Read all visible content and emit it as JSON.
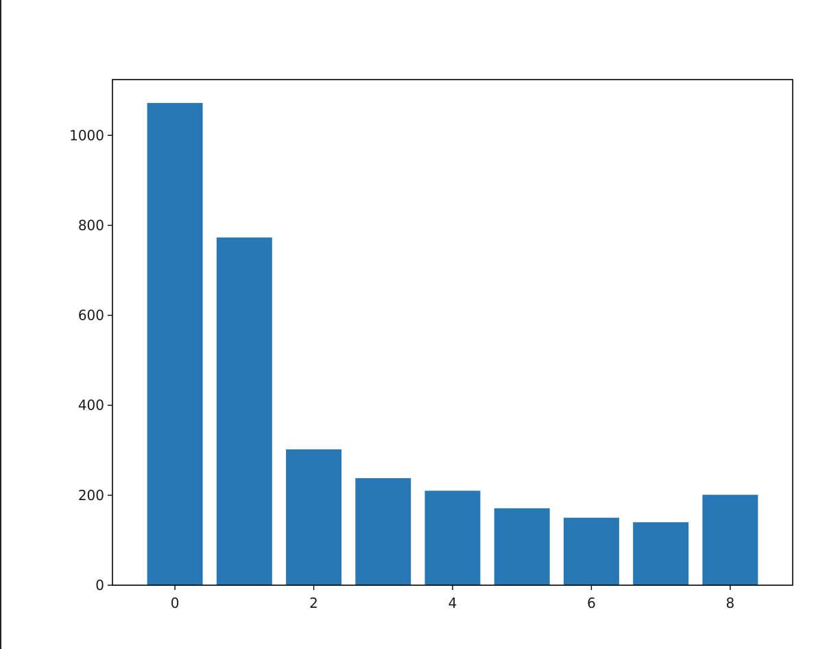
{
  "chart_data": {
    "type": "bar",
    "categories": [
      0,
      1,
      2,
      3,
      4,
      5,
      6,
      7,
      8
    ],
    "values": [
      1072,
      773,
      302,
      238,
      210,
      171,
      150,
      140,
      201
    ],
    "title": "",
    "xlabel": "",
    "ylabel": "",
    "xlim": [
      -0.9,
      8.9
    ],
    "ylim": [
      0,
      1124
    ],
    "xticks": [
      "0",
      "2",
      "4",
      "6",
      "8"
    ],
    "yticks": [
      "0",
      "200",
      "400",
      "600",
      "800",
      "1000"
    ],
    "grid": false,
    "legend": "none",
    "bar_color": "#2878b5"
  }
}
